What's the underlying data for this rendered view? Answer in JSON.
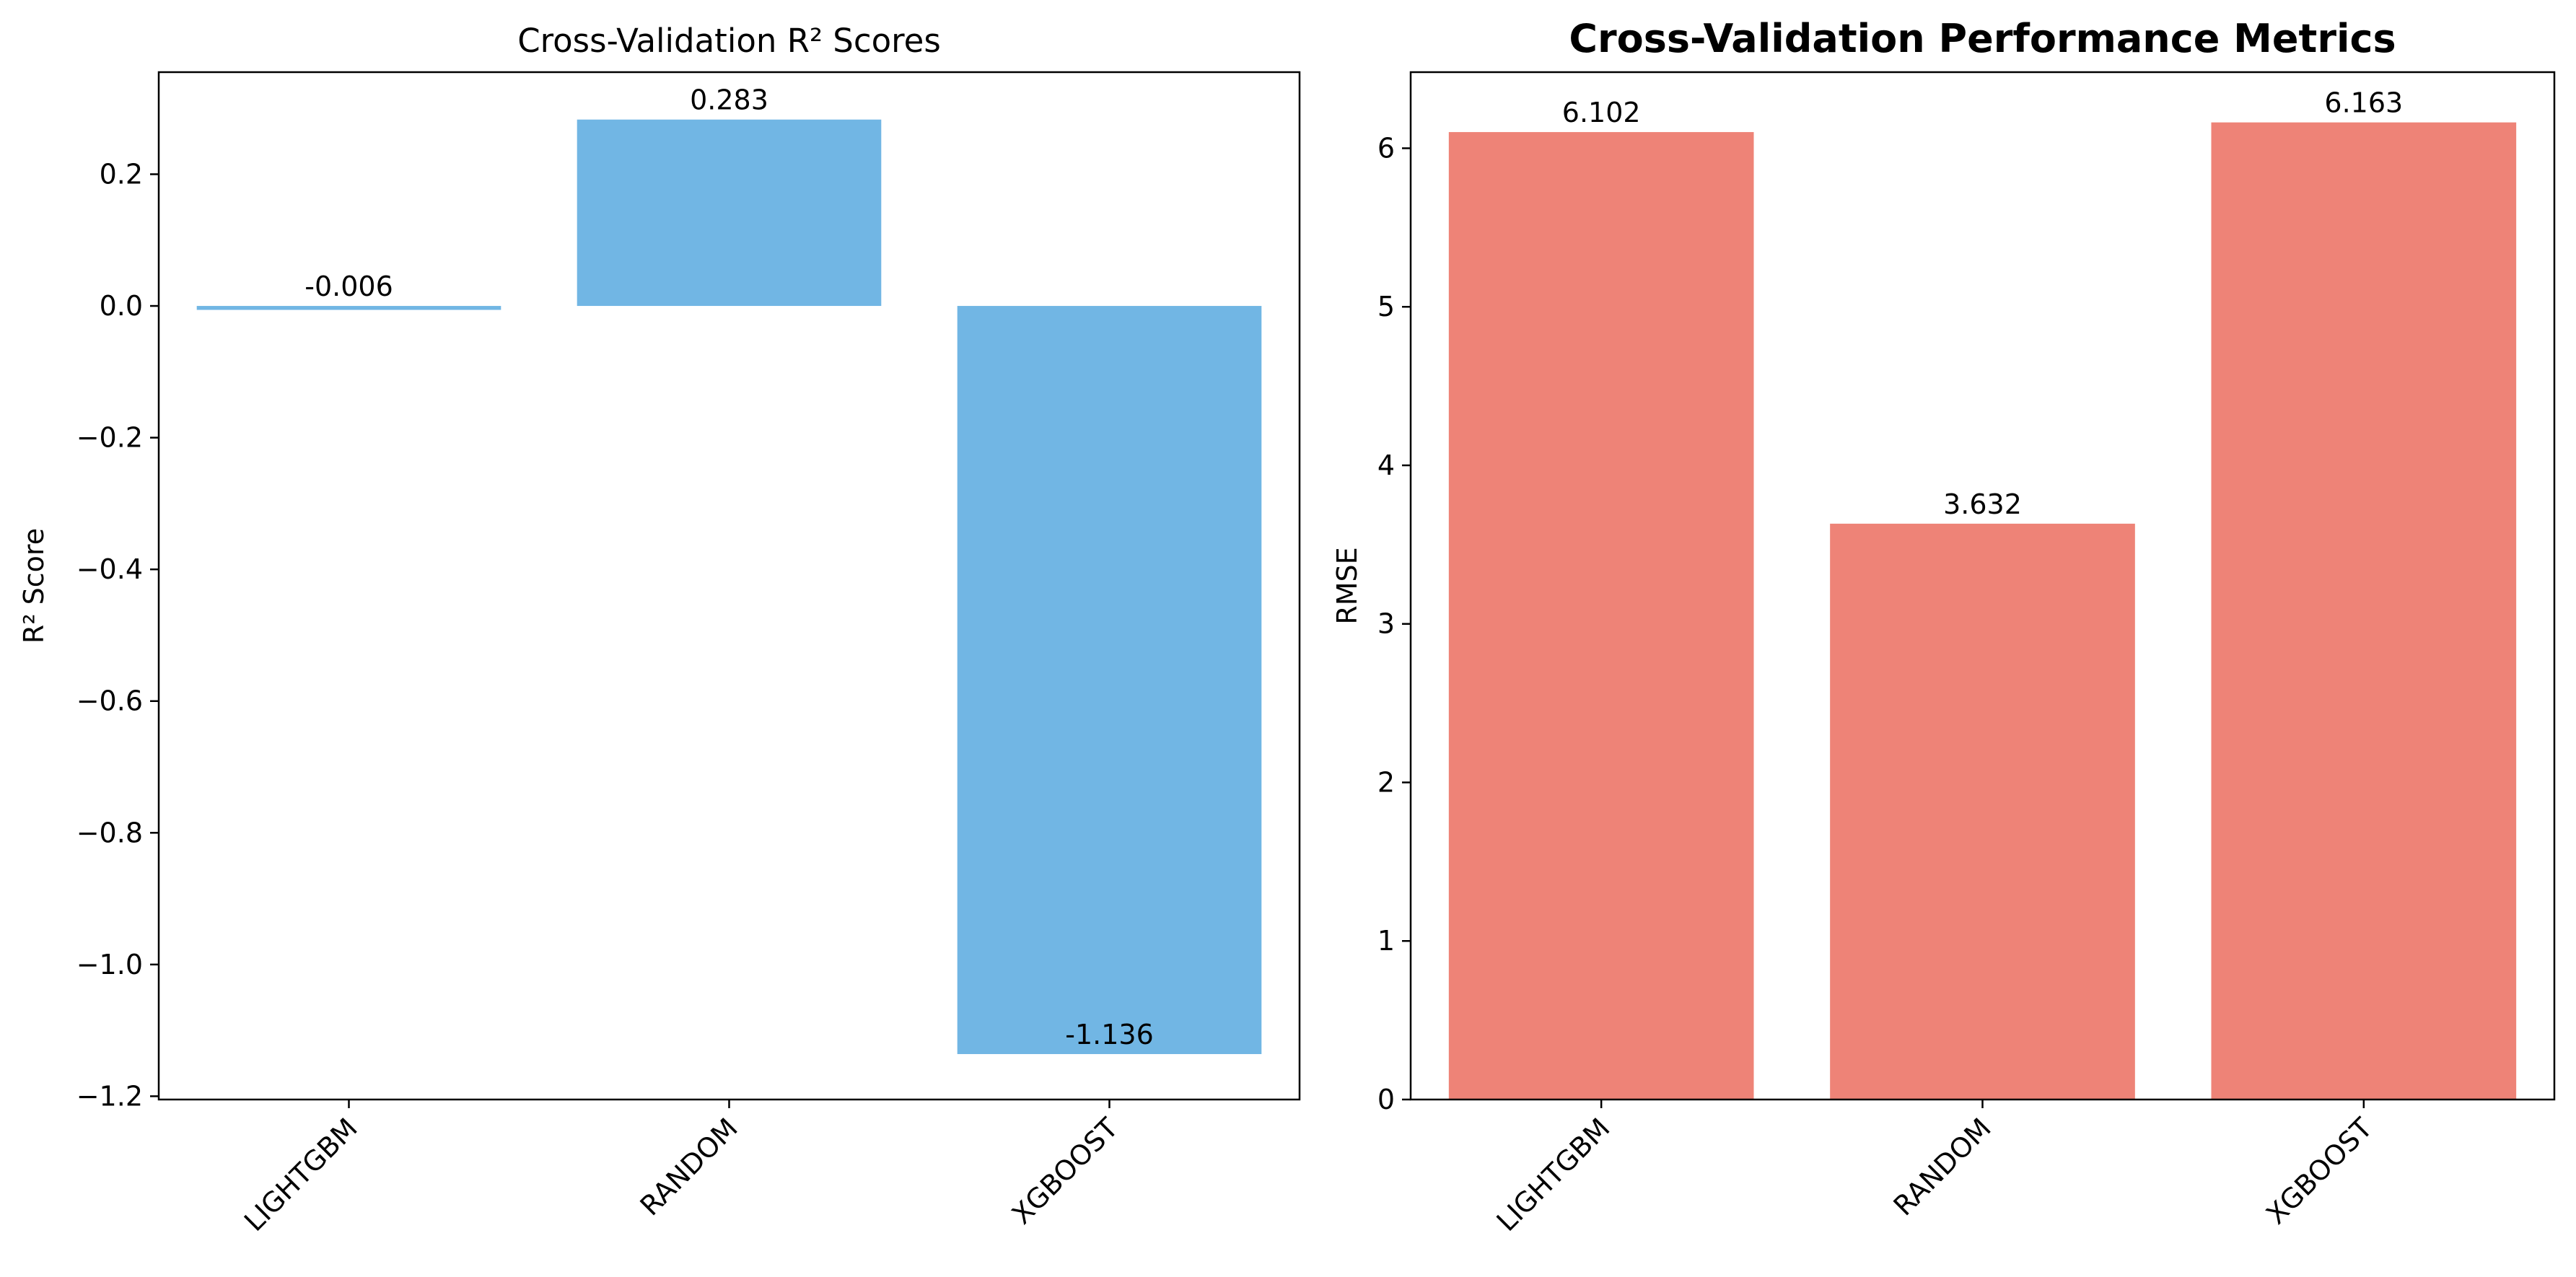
{
  "chart_data": [
    {
      "type": "bar",
      "title": "Cross-Validation R² Scores",
      "title_bold": false,
      "xlabel": "",
      "ylabel": "R² Score",
      "categories": [
        "LIGHTGBM",
        "RANDOM",
        "XGBOOST"
      ],
      "values": [
        -0.006,
        0.283,
        -1.136
      ],
      "value_labels": [
        "-0.006",
        "0.283",
        "-1.136"
      ],
      "ylim": [
        -1.205,
        0.355
      ],
      "yticks": [
        -1.2,
        -1.0,
        -0.8,
        -0.6,
        -0.4,
        -0.2,
        0.0,
        0.2
      ],
      "ytick_labels": [
        "−1.2",
        "−1.0",
        "−0.8",
        "−0.6",
        "−0.4",
        "−0.2",
        "0.0",
        "0.2"
      ],
      "color": "#71b6e4",
      "grid": false,
      "legend": "none"
    },
    {
      "type": "bar",
      "title": "Cross-Validation Performance Metrics",
      "title_bold": true,
      "xlabel": "",
      "ylabel": "RMSE",
      "categories": [
        "LIGHTGBM",
        "RANDOM",
        "XGBOOST"
      ],
      "values": [
        6.102,
        3.632,
        6.163
      ],
      "value_labels": [
        "6.102",
        "3.632",
        "6.163"
      ],
      "ylim": [
        0,
        6.48
      ],
      "yticks": [
        0,
        1,
        2,
        3,
        4,
        5,
        6
      ],
      "ytick_labels": [
        "0",
        "1",
        "2",
        "3",
        "4",
        "5",
        "6"
      ],
      "color": "#ee8377",
      "grid": false,
      "legend": "none"
    }
  ]
}
